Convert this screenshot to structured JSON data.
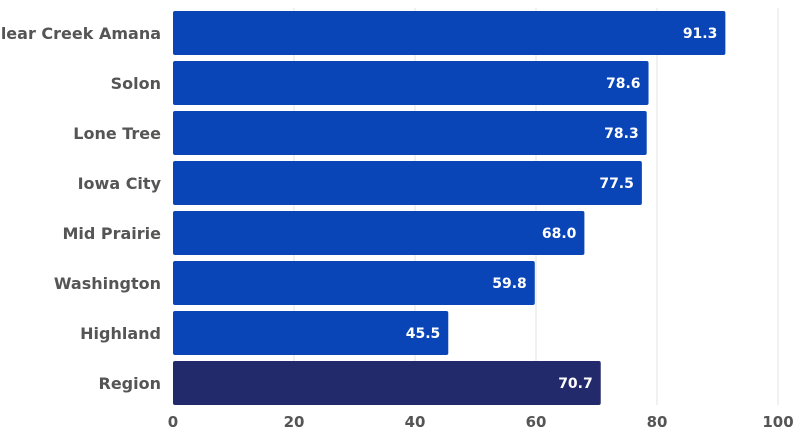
{
  "chart_data": {
    "type": "bar",
    "orientation": "horizontal",
    "categories": [
      "Clear Creek Amana",
      "Solon",
      "Lone Tree",
      "Iowa City",
      "Mid Prairie",
      "Washington",
      "Highland",
      "Region"
    ],
    "values": [
      91.3,
      78.6,
      78.3,
      77.5,
      68.0,
      59.8,
      45.5,
      70.7
    ],
    "value_labels": [
      "91.3",
      "78.6",
      "78.3",
      "77.5",
      "68.0",
      "59.8",
      "45.5",
      "70.7"
    ],
    "x_ticks": [
      "0",
      "20",
      "40",
      "60",
      "80",
      "100"
    ],
    "xlim": [
      0,
      100
    ],
    "grid": "vertical",
    "title": "",
    "xlabel": "",
    "ylabel": "",
    "colors": {
      "bar": "#0a45b8",
      "highlight_bar": "#232a6b",
      "highlight_category": "Region"
    }
  }
}
